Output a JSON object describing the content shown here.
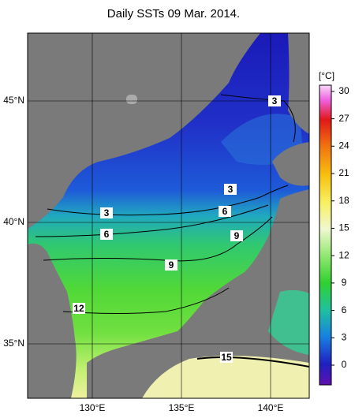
{
  "title": "Daily SSTs 09 Mar. 2014.",
  "map": {
    "lon_ticks": [
      {
        "value": 130,
        "label": "130°E"
      },
      {
        "value": 135,
        "label": "135°E"
      },
      {
        "value": 140,
        "label": "140°E"
      }
    ],
    "lat_ticks": [
      {
        "value": 45,
        "label": "45°N"
      },
      {
        "value": 40,
        "label": "40°N"
      },
      {
        "value": 35,
        "label": "35°N"
      }
    ]
  },
  "colorbar": {
    "label": "[°C]",
    "ticks": [
      0,
      3,
      6,
      9,
      12,
      15,
      18,
      21,
      24,
      27,
      30
    ]
  },
  "contour_labels": [
    3,
    3,
    3,
    6,
    6,
    9,
    9,
    12,
    15
  ]
}
